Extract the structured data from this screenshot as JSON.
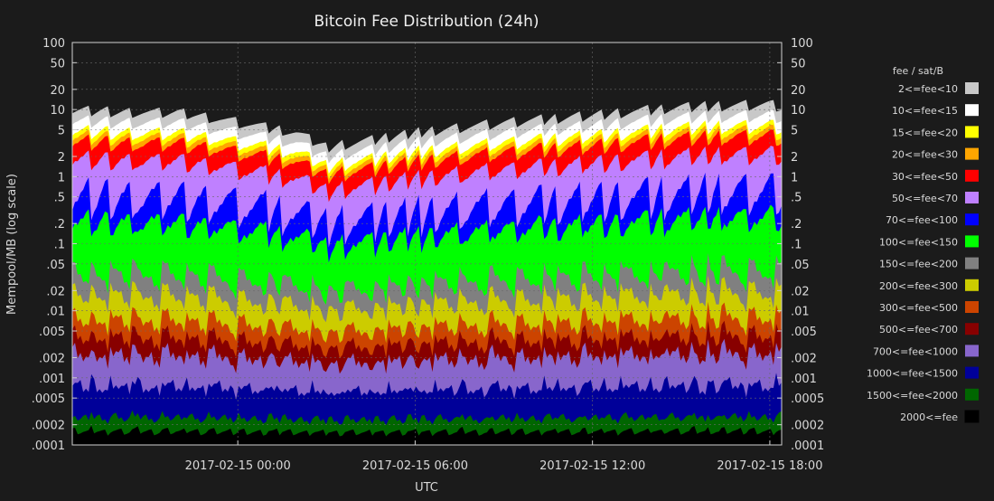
{
  "chart_data": {
    "type": "area",
    "title": "Bitcoin Fee Distribution (24h)",
    "xlabel": "UTC",
    "ylabel": "Mempool/MB (log scale)",
    "y_scale": "log",
    "ylim": [
      0.0001,
      100
    ],
    "y_ticks": [
      {
        "value": 100,
        "label": "100"
      },
      {
        "value": 50,
        "label": "50"
      },
      {
        "value": 20,
        "label": "20"
      },
      {
        "value": 10,
        "label": "10"
      },
      {
        "value": 5,
        "label": "5"
      },
      {
        "value": 2,
        "label": "2"
      },
      {
        "value": 1,
        "label": "1"
      },
      {
        "value": 0.5,
        "label": ".5"
      },
      {
        "value": 0.2,
        "label": ".2"
      },
      {
        "value": 0.1,
        "label": ".1"
      },
      {
        "value": 0.05,
        "label": ".05"
      },
      {
        "value": 0.02,
        "label": ".02"
      },
      {
        "value": 0.01,
        "label": ".01"
      },
      {
        "value": 0.005,
        "label": ".005"
      },
      {
        "value": 0.002,
        "label": ".002"
      },
      {
        "value": 0.001,
        "label": ".001"
      },
      {
        "value": 0.0005,
        "label": ".0005"
      },
      {
        "value": 0.0002,
        "label": ".0002"
      },
      {
        "value": 0.0001,
        "label": ".0001"
      }
    ],
    "xlim": [
      -5.6,
      18.4
    ],
    "x_ticks": [
      {
        "value": 0,
        "label": "2017-02-15 00:00"
      },
      {
        "value": 6,
        "label": "2017-02-15 06:00"
      },
      {
        "value": 12,
        "label": "2017-02-15 12:00"
      },
      {
        "value": 18,
        "label": "2017-02-15 18:00"
      }
    ],
    "grid": true,
    "legend_title": "fee / sat/B",
    "legend_position": "right",
    "series": [
      {
        "name": "2<=fee<10",
        "color": "#c8c8c8"
      },
      {
        "name": "10<=fee<15",
        "color": "#ffffff"
      },
      {
        "name": "15<=fee<20",
        "color": "#ffff00"
      },
      {
        "name": "20<=fee<30",
        "color": "#ffa500"
      },
      {
        "name": "30<=fee<50",
        "color": "#ff0000"
      },
      {
        "name": "50<=fee<70",
        "color": "#bf80ff"
      },
      {
        "name": "70<=fee<100",
        "color": "#0000ff"
      },
      {
        "name": "100<=fee<150",
        "color": "#00ff00"
      },
      {
        "name": "150<=fee<200",
        "color": "#808080"
      },
      {
        "name": "200<=fee<300",
        "color": "#cccc00"
      },
      {
        "name": "300<=fee<500",
        "color": "#cc4400"
      },
      {
        "name": "500<=fee<700",
        "color": "#880000"
      },
      {
        "name": "700<=fee<1000",
        "color": "#8866cc"
      },
      {
        "name": "1000<=fee<1500",
        "color": "#000099"
      },
      {
        "name": "1500<=fee<2000",
        "color": "#006600"
      },
      {
        "name": "2000<=fee",
        "color": "#000000"
      }
    ],
    "approx_total_mempool_MB": {
      "x": [
        -5.6,
        -4,
        -2,
        0,
        2,
        3,
        6,
        9,
        12,
        15,
        18,
        18.4
      ],
      "y": [
        11,
        10,
        10,
        7,
        5,
        3,
        5,
        7,
        9,
        12,
        13,
        12
      ]
    }
  }
}
